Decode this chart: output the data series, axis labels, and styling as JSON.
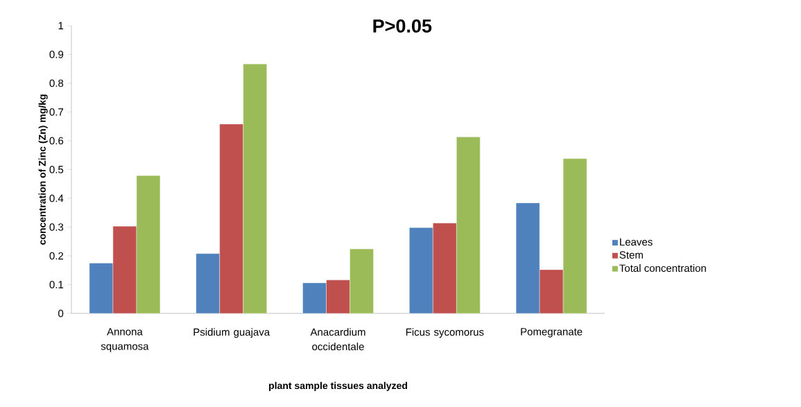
{
  "chart_data": {
    "type": "bar",
    "title": "P>0.05",
    "xlabel": "plant sample tissues analyzed",
    "ylabel": "concentration of Zinc (Zn) mg/kg",
    "categories": [
      "Annona squamosa",
      "Psidium guajava",
      "Anacardium occidentale",
      "Ficus sycomorus",
      "Pomegranate"
    ],
    "series": [
      {
        "name": "Leaves",
        "color": "#4f81bd",
        "values": [
          0.175,
          0.208,
          0.106,
          0.298,
          0.384
        ]
      },
      {
        "name": "Stem",
        "color": "#c0504d",
        "values": [
          0.303,
          0.658,
          0.116,
          0.314,
          0.152
        ]
      },
      {
        "name": "Total concentration",
        "color": "#9bbb59",
        "values": [
          0.479,
          0.867,
          0.224,
          0.613,
          0.538
        ]
      }
    ],
    "ylim": [
      0,
      1
    ],
    "yticks": [
      0,
      0.1,
      0.2,
      0.3,
      0.4,
      0.5,
      0.6,
      0.7,
      0.8,
      0.9,
      1
    ],
    "legend": "right",
    "grid": false
  }
}
